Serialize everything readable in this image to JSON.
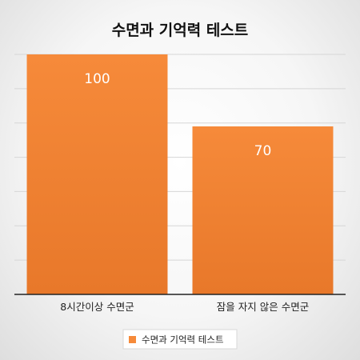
{
  "chart_data": {
    "type": "bar",
    "title": "수면과 기억력 테스트",
    "categories": [
      "8시간이상 수면군",
      "잠을 자지 않은 수면군"
    ],
    "series": [
      {
        "name": "수면과 기억력 테스트",
        "values": [
          100,
          70
        ],
        "color": "#f68a3a"
      }
    ],
    "ylim": [
      0,
      100
    ],
    "grid": true,
    "legend_position": "bottom",
    "xlabel": "",
    "ylabel": ""
  }
}
